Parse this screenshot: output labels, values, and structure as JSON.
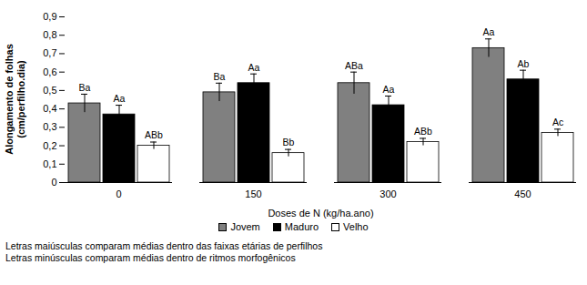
{
  "chart_data": {
    "type": "bar",
    "y_label": "Alongamento de folhas (cm/perfilho.dia)",
    "x_label": "Doses de N (kg/ha.ano)",
    "categories": [
      "0",
      "150",
      "300",
      "450"
    ],
    "series": [
      {
        "name": "Jovem",
        "color": "#808080",
        "values": [
          0.43,
          0.49,
          0.54,
          0.73
        ],
        "errors": [
          0.05,
          0.05,
          0.06,
          0.05
        ],
        "labels": [
          "Ba",
          "Ba",
          "ABa",
          "Aa"
        ]
      },
      {
        "name": "Maduro",
        "color": "#000000",
        "values": [
          0.37,
          0.54,
          0.42,
          0.56
        ],
        "errors": [
          0.05,
          0.05,
          0.05,
          0.05
        ],
        "labels": [
          "Aa",
          "Aa",
          "Aa",
          "Ab"
        ]
      },
      {
        "name": "Velho",
        "color": "#ffffff",
        "values": [
          0.2,
          0.16,
          0.22,
          0.27
        ],
        "errors": [
          0.02,
          0.02,
          0.02,
          0.02
        ],
        "labels": [
          "ABb",
          "Bb",
          "ABb",
          "Ac"
        ]
      }
    ],
    "ylim": [
      0,
      0.9
    ],
    "yticks": [
      0,
      {
        "value": 0.1,
        "label": "0,1"
      },
      {
        "value": 0.2,
        "label": "0,2"
      },
      {
        "value": 0.3,
        "label": "0,3"
      },
      {
        "value": 0.4,
        "label": "0,4"
      },
      {
        "value": 0.5,
        "label": "0,5"
      },
      {
        "value": 0.6,
        "label": "0,6"
      },
      {
        "value": 0.7,
        "label": "0,7"
      },
      {
        "value": 0.8,
        "label": "0,8"
      },
      {
        "value": 0.9,
        "label": "0,9"
      }
    ],
    "legend": "bottom",
    "grid": false,
    "annotations": [
      "Letras maiúsculas comparam médias dentro das faixas etárias de perfilhos",
      "Letras minúsculas comparam médias dentro de ritmos morfogênicos"
    ]
  }
}
